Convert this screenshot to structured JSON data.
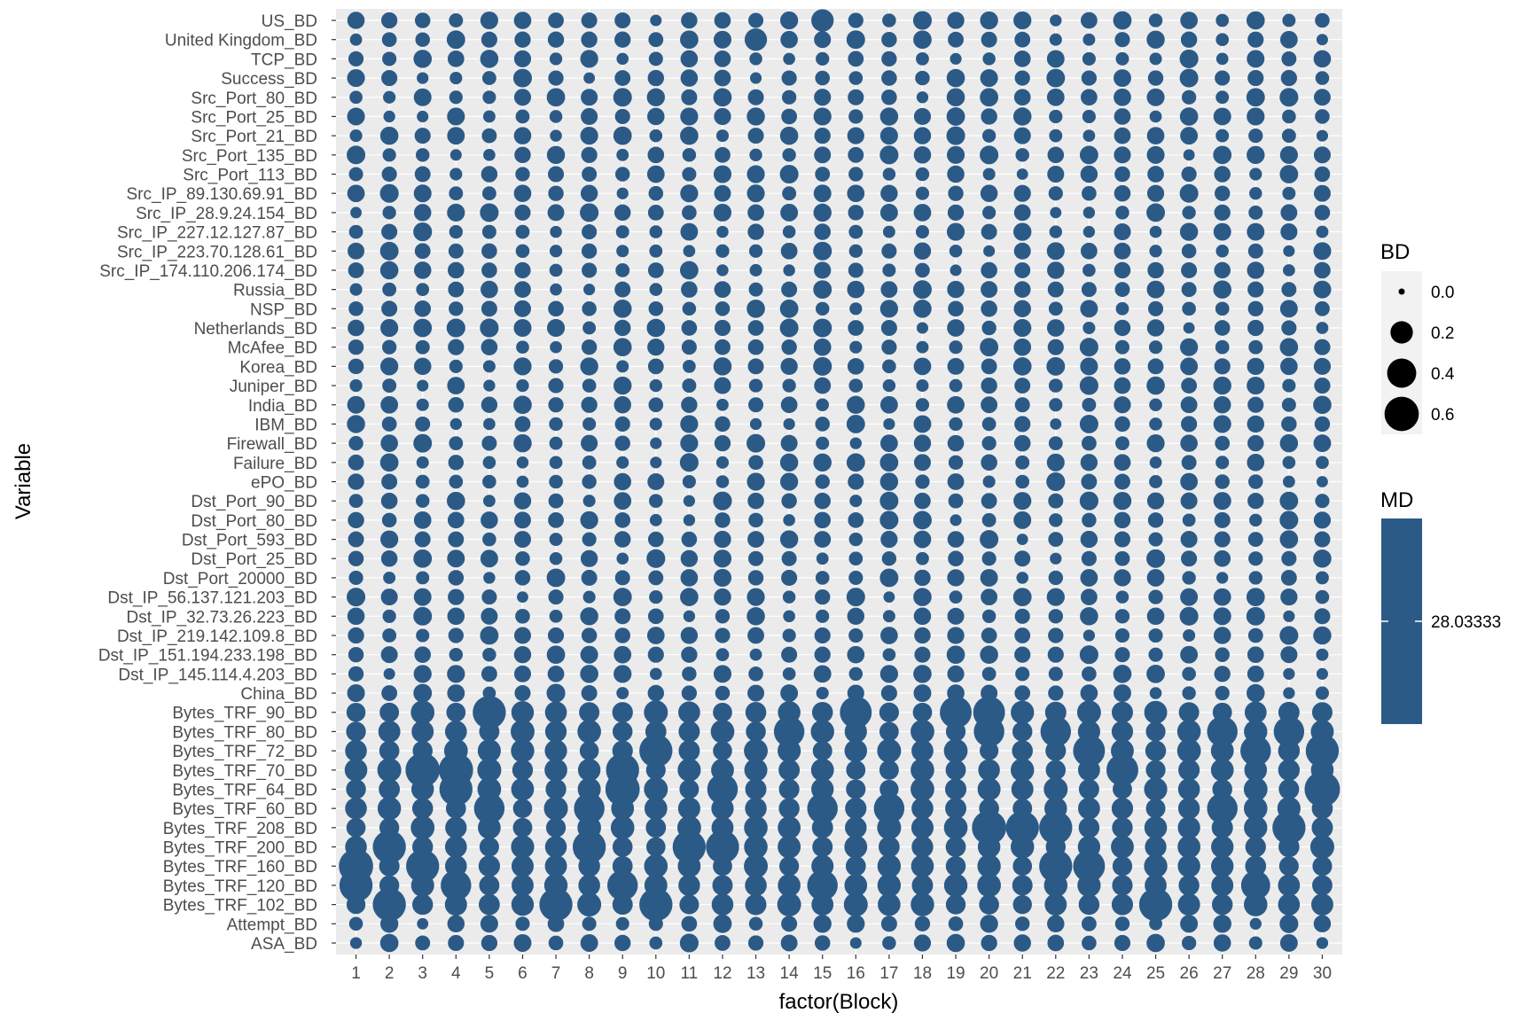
{
  "chart_data": {
    "type": "scatter",
    "xlabel": "factor(Block)",
    "ylabel": "Variable",
    "blocks": [
      "1",
      "2",
      "3",
      "4",
      "5",
      "6",
      "7",
      "8",
      "9",
      "10",
      "11",
      "12",
      "13",
      "14",
      "15",
      "16",
      "17",
      "18",
      "19",
      "20",
      "21",
      "22",
      "23",
      "24",
      "25",
      "26",
      "27",
      "28",
      "29",
      "30"
    ],
    "variables_top_to_bottom": [
      "US_BD",
      "United Kingdom_BD",
      "TCP_BD",
      "Success_BD",
      "Src_Port_80_BD",
      "Src_Port_25_BD",
      "Src_Port_21_BD",
      "Src_Port_135_BD",
      "Src_Port_113_BD",
      "Src_IP_89.130.69.91_BD",
      "Src_IP_28.9.24.154_BD",
      "Src_IP_227.12.127.87_BD",
      "Src_IP_223.70.128.61_BD",
      "Src_IP_174.110.206.174_BD",
      "Russia_BD",
      "NSP_BD",
      "Netherlands_BD",
      "McAfee_BD",
      "Korea_BD",
      "Juniper_BD",
      "India_BD",
      "IBM_BD",
      "Firewall_BD",
      "Failure_BD",
      "ePO_BD",
      "Dst_Port_90_BD",
      "Dst_Port_80_BD",
      "Dst_Port_593_BD",
      "Dst_Port_25_BD",
      "Dst_Port_20000_BD",
      "Dst_IP_56.137.121.203_BD",
      "Dst_IP_32.73.26.223_BD",
      "Dst_IP_219.142.109.8_BD",
      "Dst_IP_151.194.233.198_BD",
      "Dst_IP_145.114.4.203_BD",
      "China_BD",
      "Bytes_TRF_90_BD",
      "Bytes_TRF_80_BD",
      "Bytes_TRF_72_BD",
      "Bytes_TRF_70_BD",
      "Bytes_TRF_64_BD",
      "Bytes_TRF_60_BD",
      "Bytes_TRF_208_BD",
      "Bytes_TRF_200_BD",
      "Bytes_TRF_160_BD",
      "Bytes_TRF_120_BD",
      "Bytes_TRF_102_BD",
      "Attempt_BD",
      "ASA_BD"
    ],
    "size_variable": "BD",
    "size_legend": {
      "title": "BD",
      "breaks": [
        0.0,
        0.2,
        0.4,
        0.6
      ],
      "labels": [
        "0.0",
        "0.2",
        "0.4",
        "0.6"
      ]
    },
    "color_legend": {
      "title": "MD",
      "label": "28.03333",
      "color": "#2c5a87"
    },
    "point_color": "#2c5a87",
    "grid": true,
    "background": "#ebebeb",
    "gridline_color": "#ffffff",
    "default_bd": 0.1,
    "bd_highlights": [
      {
        "variable": "Bytes_TRF_90_BD",
        "block": "5",
        "bd": 0.55
      },
      {
        "variable": "Bytes_TRF_90_BD",
        "block": "16",
        "bd": 0.5
      },
      {
        "variable": "Bytes_TRF_90_BD",
        "block": "19",
        "bd": 0.5
      },
      {
        "variable": "Bytes_TRF_90_BD",
        "block": "20",
        "bd": 0.5
      },
      {
        "variable": "Bytes_TRF_80_BD",
        "block": "14",
        "bd": 0.45
      },
      {
        "variable": "Bytes_TRF_80_BD",
        "block": "20",
        "bd": 0.45
      },
      {
        "variable": "Bytes_TRF_80_BD",
        "block": "22",
        "bd": 0.45
      },
      {
        "variable": "Bytes_TRF_80_BD",
        "block": "27",
        "bd": 0.45
      },
      {
        "variable": "Bytes_TRF_80_BD",
        "block": "29",
        "bd": 0.45
      },
      {
        "variable": "Bytes_TRF_72_BD",
        "block": "10",
        "bd": 0.55
      },
      {
        "variable": "Bytes_TRF_72_BD",
        "block": "23",
        "bd": 0.5
      },
      {
        "variable": "Bytes_TRF_72_BD",
        "block": "28",
        "bd": 0.45
      },
      {
        "variable": "Bytes_TRF_72_BD",
        "block": "30",
        "bd": 0.55
      },
      {
        "variable": "Bytes_TRF_70_BD",
        "block": "3",
        "bd": 0.6
      },
      {
        "variable": "Bytes_TRF_70_BD",
        "block": "4",
        "bd": 0.6
      },
      {
        "variable": "Bytes_TRF_70_BD",
        "block": "9",
        "bd": 0.55
      },
      {
        "variable": "Bytes_TRF_70_BD",
        "block": "24",
        "bd": 0.5
      },
      {
        "variable": "Bytes_TRF_64_BD",
        "block": "4",
        "bd": 0.55
      },
      {
        "variable": "Bytes_TRF_64_BD",
        "block": "9",
        "bd": 0.6
      },
      {
        "variable": "Bytes_TRF_64_BD",
        "block": "12",
        "bd": 0.45
      },
      {
        "variable": "Bytes_TRF_64_BD",
        "block": "30",
        "bd": 0.65
      },
      {
        "variable": "Bytes_TRF_60_BD",
        "block": "5",
        "bd": 0.45
      },
      {
        "variable": "Bytes_TRF_60_BD",
        "block": "8",
        "bd": 0.45
      },
      {
        "variable": "Bytes_TRF_60_BD",
        "block": "15",
        "bd": 0.45
      },
      {
        "variable": "Bytes_TRF_60_BD",
        "block": "17",
        "bd": 0.45
      },
      {
        "variable": "Bytes_TRF_60_BD",
        "block": "27",
        "bd": 0.45
      },
      {
        "variable": "Bytes_TRF_208_BD",
        "block": "20",
        "bd": 0.6
      },
      {
        "variable": "Bytes_TRF_208_BD",
        "block": "21",
        "bd": 0.55
      },
      {
        "variable": "Bytes_TRF_208_BD",
        "block": "22",
        "bd": 0.55
      },
      {
        "variable": "Bytes_TRF_208_BD",
        "block": "29",
        "bd": 0.55
      },
      {
        "variable": "Bytes_TRF_200_BD",
        "block": "2",
        "bd": 0.55
      },
      {
        "variable": "Bytes_TRF_200_BD",
        "block": "8",
        "bd": 0.55
      },
      {
        "variable": "Bytes_TRF_200_BD",
        "block": "11",
        "bd": 0.55
      },
      {
        "variable": "Bytes_TRF_200_BD",
        "block": "12",
        "bd": 0.55
      },
      {
        "variable": "Bytes_TRF_160_BD",
        "block": "1",
        "bd": 0.6
      },
      {
        "variable": "Bytes_TRF_160_BD",
        "block": "3",
        "bd": 0.55
      },
      {
        "variable": "Bytes_TRF_160_BD",
        "block": "22",
        "bd": 0.55
      },
      {
        "variable": "Bytes_TRF_160_BD",
        "block": "23",
        "bd": 0.5
      },
      {
        "variable": "Bytes_TRF_120_BD",
        "block": "1",
        "bd": 0.55
      },
      {
        "variable": "Bytes_TRF_120_BD",
        "block": "4",
        "bd": 0.45
      },
      {
        "variable": "Bytes_TRF_120_BD",
        "block": "9",
        "bd": 0.45
      },
      {
        "variable": "Bytes_TRF_120_BD",
        "block": "15",
        "bd": 0.45
      },
      {
        "variable": "Bytes_TRF_120_BD",
        "block": "28",
        "bd": 0.4
      },
      {
        "variable": "Bytes_TRF_102_BD",
        "block": "2",
        "bd": 0.55
      },
      {
        "variable": "Bytes_TRF_102_BD",
        "block": "7",
        "bd": 0.55
      },
      {
        "variable": "Bytes_TRF_102_BD",
        "block": "10",
        "bd": 0.55
      },
      {
        "variable": "Bytes_TRF_102_BD",
        "block": "25",
        "bd": 0.55
      },
      {
        "variable": "United Kingdom_BD",
        "block": "13",
        "bd": 0.2
      },
      {
        "variable": "US_BD",
        "block": "15",
        "bd": 0.2
      }
    ]
  }
}
